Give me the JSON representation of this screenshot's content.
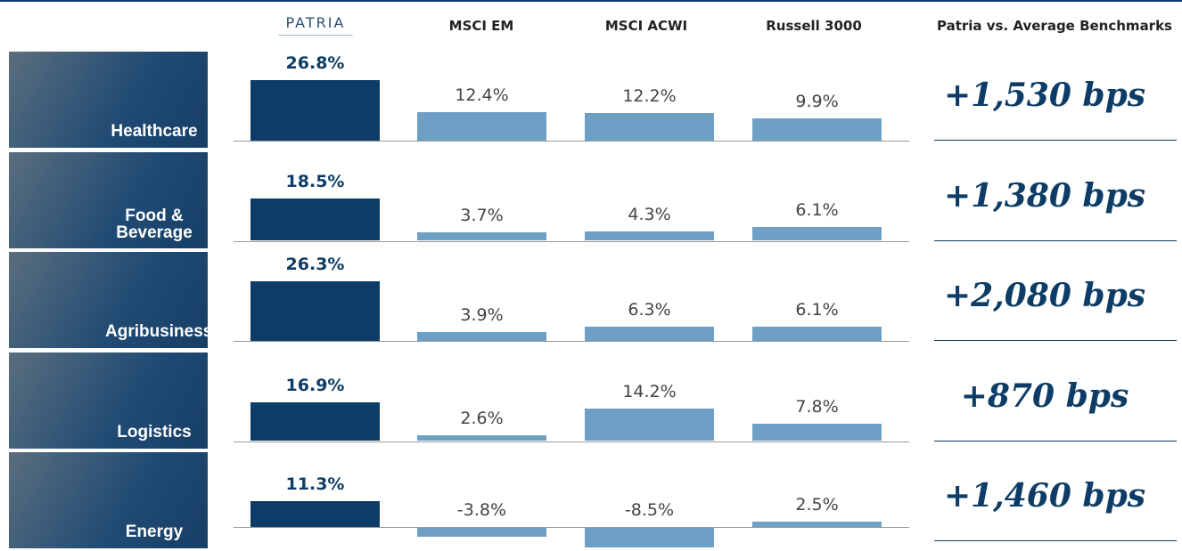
{
  "columns": [
    "PATRIA",
    "MSCI EM",
    "MSCI ACWI",
    "Russell 3000",
    "Patria vs. Average Benchmarks"
  ],
  "rows": [
    {
      "sector": "Healthcare",
      "values": [
        26.8,
        12.4,
        12.2,
        9.9
      ],
      "value_labels": [
        "26.8%",
        "12.4%",
        "12.2%",
        "9.9%"
      ],
      "delta": "+1,530 bps"
    },
    {
      "sector": "Food & Beverage",
      "values": [
        18.5,
        3.7,
        4.3,
        6.1
      ],
      "value_labels": [
        "18.5%",
        "3.7%",
        "4.3%",
        "6.1%"
      ],
      "delta": "+1,380 bps"
    },
    {
      "sector": "Agribusiness",
      "values": [
        26.3,
        3.9,
        6.3,
        6.1
      ],
      "value_labels": [
        "26.3%",
        "3.9%",
        "6.3%",
        "6.1%"
      ],
      "delta": "+2,080 bps"
    },
    {
      "sector": "Logistics",
      "values": [
        16.9,
        2.6,
        14.2,
        7.8
      ],
      "value_labels": [
        "16.9%",
        "2.6%",
        "14.2%",
        "7.8%"
      ],
      "delta": "+870 bps"
    },
    {
      "sector": "Energy",
      "values": [
        11.3,
        -3.8,
        -8.5,
        2.5
      ],
      "value_labels": [
        "11.3%",
        "-3.8%",
        "-8.5%",
        "2.5%"
      ],
      "delta": "+1,460 bps"
    }
  ],
  "colors": {
    "patria": "#0d3d66",
    "benchmark": "#6e9fc5"
  }
}
